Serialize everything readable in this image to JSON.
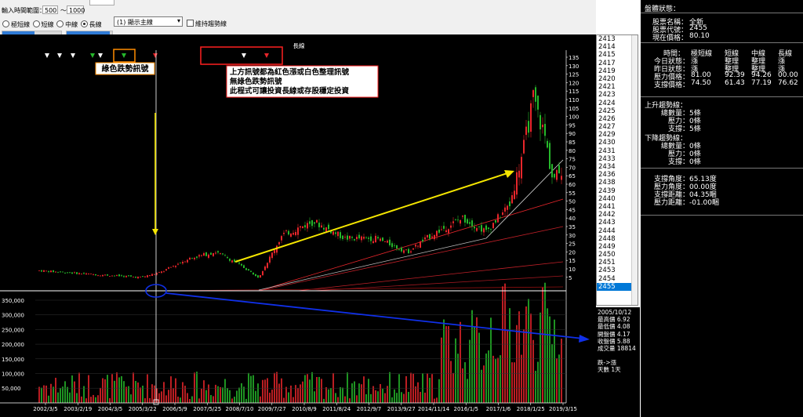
{
  "toolbar": {
    "range_label": "輸入時間範圍：",
    "range_from": "500",
    "range_sep": "～",
    "range_to": "1000",
    "mode_options": [
      {
        "label": "極短線",
        "selected": false
      },
      {
        "label": "短線",
        "selected": false
      },
      {
        "label": "中線",
        "selected": false
      },
      {
        "label": "長線",
        "selected": true
      }
    ],
    "display_select": "(1) 顯示主線",
    "trend_checkbox_label": "維持趨勢線",
    "slider_1_fill": 0.55,
    "slider_2_fill": 0.95
  },
  "chart": {
    "title": "長線",
    "price_axis": [
      "135",
      "130",
      "125",
      "120",
      "115",
      "110",
      "105",
      "100",
      "95",
      "90",
      "85",
      "80",
      "75",
      "70",
      "65",
      "60",
      "55",
      "50",
      "45",
      "40",
      "35",
      "30",
      "25",
      "20",
      "15",
      "10",
      "5"
    ],
    "volume_axis": [
      "350,000",
      "300,000",
      "250,000",
      "200,000",
      "150,000",
      "100,000",
      "50,000"
    ],
    "x_axis": [
      "2002/3/5",
      "2003/2/19",
      "2004/3/5",
      "2005/3/22",
      "2006/5/9",
      "2007/5/25",
      "2008/7/10",
      "2009/7/27",
      "2010/8/9",
      "2011/8/24",
      "2012/9/7",
      "2013/9/27",
      "2014/11/14",
      "2016/1/5",
      "2017/1/6",
      "2018/1/25",
      "2019/3/15"
    ],
    "annotation_green": "綠色跌勢訊號",
    "annotation_main": [
      "上方訊號都為紅色漲或白色整理訊號",
      "無綠色跌勢訊號",
      "此程式可讓投資長線或存股穩定投資"
    ],
    "colors": {
      "up": "#e8262b",
      "down": "#26b82b",
      "arrow_yellow": "#f5e600",
      "arrow_blue": "#1030e8",
      "box_orange": "#ff8c00",
      "box_red": "#ff2020"
    }
  },
  "stock_list": [
    "2413",
    "2414",
    "2415",
    "2417",
    "2419",
    "2420",
    "2421",
    "2423",
    "2424",
    "2425",
    "2426",
    "2427",
    "2429",
    "2430",
    "2431",
    "2433",
    "2434",
    "2436",
    "2438",
    "2439",
    "2440",
    "2441",
    "2442",
    "2443",
    "2444",
    "2448",
    "2449",
    "2450",
    "2451",
    "2453",
    "2454",
    "2455"
  ],
  "stock_list_selected": "2455",
  "day_info": {
    "date": "2005/10/12",
    "lines": [
      "最高價 6.92",
      "最低價 4.08",
      "開盤價 4.17",
      "收盤價 5.88",
      "成交量 18814"
    ],
    "trend": "跌->漲",
    "days": "天數 1天"
  },
  "panel": {
    "header": "盤體狀態：",
    "stock_name_label": "股票名稱：",
    "stock_name": "全新",
    "stock_code_label": "股票代號：",
    "stock_code": "2455",
    "price_label": "現在價格：",
    "price": "80.10",
    "table_headers": [
      "時間：",
      "極短線",
      "短線",
      "中線",
      "長線"
    ],
    "table_rows": [
      {
        "label": "今日狀態：",
        "values": [
          "漲",
          "整理",
          "整理",
          "漲"
        ]
      },
      {
        "label": "昨日狀態：",
        "values": [
          "漲",
          "整理",
          "整理",
          "漲"
        ]
      },
      {
        "label": "壓力價格：",
        "values": [
          "81.00",
          "92.39",
          "94.26",
          "00.00"
        ]
      },
      {
        "label": "支撐價格：",
        "values": [
          "74.50",
          "61.43",
          "77.19",
          "76.62"
        ]
      }
    ],
    "up_trend_header": "上升趨勢線：",
    "up_trend": [
      {
        "label": "總數量：",
        "value": "5條"
      },
      {
        "label": "壓力：",
        "value": "0條"
      },
      {
        "label": "支撐：",
        "value": "5條"
      }
    ],
    "down_trend_header": "下降趨勢線：",
    "down_trend": [
      {
        "label": "總數量：",
        "value": "0條"
      },
      {
        "label": "壓力：",
        "value": "0條"
      },
      {
        "label": "支撐：",
        "value": "0條"
      }
    ],
    "angles": [
      {
        "label": "支撐角度：",
        "value": "65.13度"
      },
      {
        "label": "壓力角度：",
        "value": "00.00度"
      },
      {
        "label": "支撐距離：",
        "value": "04.35睏"
      },
      {
        "label": "壓力距離：",
        "value": "-01.00睏"
      }
    ]
  }
}
